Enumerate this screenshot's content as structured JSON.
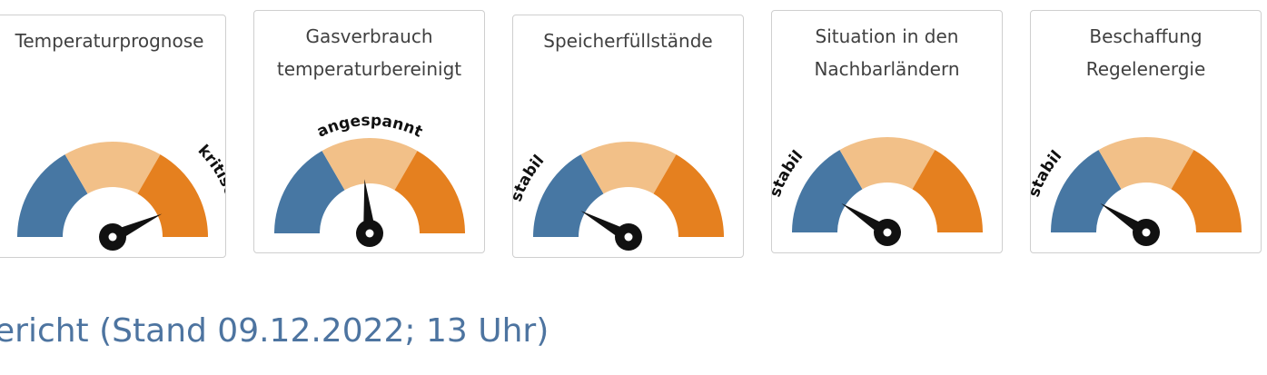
{
  "colors": {
    "stable": "#4777a3",
    "tense": "#f2c088",
    "critical": "#e5801f",
    "needle": "#111111",
    "headline": "#4d74a0"
  },
  "gauges": [
    {
      "title_lines": [
        "Temperaturprognose"
      ],
      "status": "kritisch",
      "level": "critical",
      "needle_value": 0.86
    },
    {
      "title_lines": [
        "Gasverbrauch",
        "temperaturbereinigt"
      ],
      "status": "angespannt",
      "level": "tense",
      "needle_value": 0.47
    },
    {
      "title_lines": [
        "Speicherfüllstände"
      ],
      "status": "stabil",
      "level": "stable",
      "needle_value": 0.16
    },
    {
      "title_lines": [
        "Situation in den",
        "Nachbarländern"
      ],
      "status": "stabil",
      "level": "stable",
      "needle_value": 0.18
    },
    {
      "title_lines": [
        "Beschaffung",
        "Regelenergie"
      ],
      "status": "stabil",
      "level": "stable",
      "needle_value": 0.18
    }
  ],
  "headline": "ericht (Stand 09.12.2022; 13 Uhr)"
}
